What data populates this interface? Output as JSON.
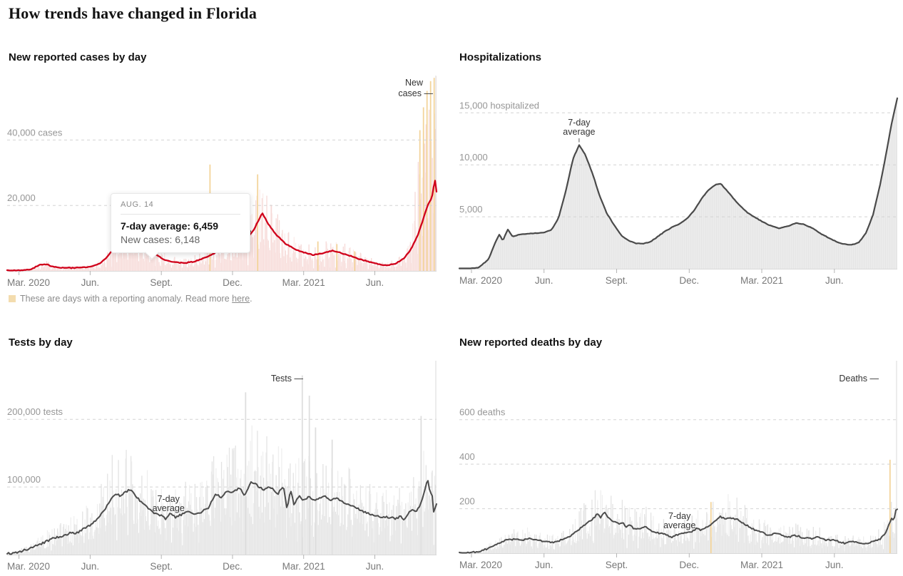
{
  "page_title": "How trends have changed in Florida",
  "tooltip": {
    "date": "AUG. 14",
    "line1": "7-day average: 6,459",
    "line2": "New cases: 6,148"
  },
  "footnote": {
    "text": "These are days with a reporting anomaly. Read more ",
    "link_text": "here",
    "suffix": "."
  },
  "colors": {
    "cases_line": "#d0021b",
    "cases_bar": "#f6d9d7",
    "anomaly": "#f3d49b",
    "gray_line": "#4d4d4d",
    "gray_bar": "#e3e3e3",
    "hosp_area": "#e6e6e6",
    "gridline": "#d4d4d4"
  },
  "chart_data": [
    {
      "id": "cases",
      "title": "New reported cases by day",
      "type": "bar+line",
      "x_domain": [
        -0.5,
        17.6
      ],
      "x_ticks": [
        {
          "m": 0,
          "label": "Mar. 2020"
        },
        {
          "m": 3,
          "label": "Jun."
        },
        {
          "m": 6,
          "label": "Sept."
        },
        {
          "m": 9,
          "label": "Dec."
        },
        {
          "m": 12,
          "label": "Mar. 2021"
        },
        {
          "m": 15,
          "label": "Jun."
        }
      ],
      "y_gridlines": [
        {
          "value": 40000,
          "label": "40,000 cases"
        },
        {
          "value": 20000,
          "label": "20,000"
        }
      ],
      "y_max": 61000,
      "series_label": "New cases",
      "annotation": {
        "text": "7-day average",
        "m": 9.12
      },
      "line": [
        [
          -0.5,
          100
        ],
        [
          0,
          200
        ],
        [
          0.5,
          500
        ],
        [
          0.9,
          1900
        ],
        [
          1.1,
          2100
        ],
        [
          1.4,
          1400
        ],
        [
          1.8,
          1000
        ],
        [
          2.2,
          900
        ],
        [
          2.6,
          1000
        ],
        [
          3.0,
          1200
        ],
        [
          3.4,
          2200
        ],
        [
          3.7,
          4200
        ],
        [
          4.0,
          6800
        ],
        [
          4.3,
          10000
        ],
        [
          4.6,
          11900
        ],
        [
          4.9,
          10700
        ],
        [
          5.1,
          9000
        ],
        [
          5.45,
          6459
        ],
        [
          5.8,
          4900
        ],
        [
          6.1,
          3500
        ],
        [
          6.5,
          2700
        ],
        [
          7.0,
          2400
        ],
        [
          7.4,
          2900
        ],
        [
          7.8,
          3900
        ],
        [
          8.2,
          5300
        ],
        [
          8.5,
          6500
        ],
        [
          8.75,
          7700
        ],
        [
          8.95,
          7200
        ],
        [
          9.2,
          9300
        ],
        [
          9.4,
          10200
        ],
        [
          9.6,
          9700
        ],
        [
          9.9,
          12500
        ],
        [
          10.1,
          15500
        ],
        [
          10.25,
          17800
        ],
        [
          10.5,
          14500
        ],
        [
          10.8,
          11400
        ],
        [
          11.2,
          8500
        ],
        [
          11.6,
          6700
        ],
        [
          12.0,
          5600
        ],
        [
          12.4,
          4900
        ],
        [
          12.8,
          5300
        ],
        [
          13.2,
          6200
        ],
        [
          13.6,
          5400
        ],
        [
          14.0,
          4500
        ],
        [
          14.4,
          3500
        ],
        [
          14.8,
          2700
        ],
        [
          15.2,
          2000
        ],
        [
          15.5,
          1700
        ],
        [
          15.9,
          2300
        ],
        [
          16.2,
          3700
        ],
        [
          16.5,
          6300
        ],
        [
          16.8,
          10700
        ],
        [
          17.0,
          15000
        ],
        [
          17.2,
          19500
        ],
        [
          17.35,
          21700
        ],
        [
          17.45,
          23500
        ],
        [
          17.52,
          28500
        ],
        [
          17.6,
          24300
        ]
      ],
      "anomalies": [
        [
          8.05,
          32500
        ],
        [
          10.06,
          29500
        ],
        [
          12.6,
          9000
        ],
        [
          13.4,
          8200
        ],
        [
          14.15,
          6000
        ],
        [
          16.9,
          43000
        ],
        [
          17.05,
          50000
        ],
        [
          17.2,
          55000
        ],
        [
          17.35,
          58000
        ],
        [
          17.5,
          59000
        ]
      ]
    },
    {
      "id": "hospitalizations",
      "title": "Hospitalizations",
      "type": "area+line",
      "x_domain": [
        -0.5,
        17.6
      ],
      "x_ticks": [
        {
          "m": 0,
          "label": "Mar. 2020"
        },
        {
          "m": 3,
          "label": "Jun."
        },
        {
          "m": 6,
          "label": "Sept."
        },
        {
          "m": 9,
          "label": "Dec."
        },
        {
          "m": 12,
          "label": "Mar. 2021"
        },
        {
          "m": 15,
          "label": "Jun."
        }
      ],
      "y_gridlines": [
        {
          "value": 15000,
          "label": "15,000 hospitalized"
        },
        {
          "value": 10000,
          "label": "10,000"
        },
        {
          "value": 5000,
          "label": "5,000"
        }
      ],
      "y_max": 19000,
      "annotation": {
        "text": "7-day average",
        "m": 4.45
      },
      "line": [
        [
          -0.2,
          0
        ],
        [
          0.3,
          100
        ],
        [
          0.7,
          900
        ],
        [
          1.0,
          2600
        ],
        [
          1.15,
          3300
        ],
        [
          1.3,
          2700
        ],
        [
          1.5,
          3800
        ],
        [
          1.7,
          3100
        ],
        [
          2.0,
          3300
        ],
        [
          2.5,
          3400
        ],
        [
          3.0,
          3500
        ],
        [
          3.3,
          3700
        ],
        [
          3.6,
          4900
        ],
        [
          3.9,
          7500
        ],
        [
          4.2,
          10600
        ],
        [
          4.45,
          11900
        ],
        [
          4.7,
          11000
        ],
        [
          5.0,
          9200
        ],
        [
          5.3,
          7000
        ],
        [
          5.6,
          5300
        ],
        [
          5.9,
          4200
        ],
        [
          6.2,
          3200
        ],
        [
          6.5,
          2700
        ],
        [
          6.8,
          2450
        ],
        [
          7.1,
          2400
        ],
        [
          7.4,
          2600
        ],
        [
          7.7,
          3100
        ],
        [
          8.0,
          3600
        ],
        [
          8.3,
          4000
        ],
        [
          8.6,
          4300
        ],
        [
          8.9,
          4800
        ],
        [
          9.2,
          5600
        ],
        [
          9.5,
          6700
        ],
        [
          9.8,
          7600
        ],
        [
          10.1,
          8100
        ],
        [
          10.3,
          8200
        ],
        [
          10.6,
          7400
        ],
        [
          11.0,
          6300
        ],
        [
          11.4,
          5400
        ],
        [
          11.9,
          4700
        ],
        [
          12.3,
          4200
        ],
        [
          12.7,
          3900
        ],
        [
          13.1,
          4100
        ],
        [
          13.4,
          4400
        ],
        [
          13.7,
          4300
        ],
        [
          14.1,
          3900
        ],
        [
          14.5,
          3300
        ],
        [
          14.9,
          2800
        ],
        [
          15.3,
          2400
        ],
        [
          15.7,
          2300
        ],
        [
          16.0,
          2500
        ],
        [
          16.3,
          3400
        ],
        [
          16.6,
          5200
        ],
        [
          16.9,
          8200
        ],
        [
          17.15,
          11200
        ],
        [
          17.35,
          13800
        ],
        [
          17.6,
          16400
        ]
      ],
      "anomalies": []
    },
    {
      "id": "tests",
      "title": "Tests by day",
      "type": "bar+line",
      "x_domain": [
        -0.5,
        17.6
      ],
      "x_ticks": [
        {
          "m": 0,
          "label": "Mar. 2020"
        },
        {
          "m": 3,
          "label": "Jun."
        },
        {
          "m": 6,
          "label": "Sept."
        },
        {
          "m": 9,
          "label": "Dec."
        },
        {
          "m": 12,
          "label": "Mar. 2021"
        },
        {
          "m": 15,
          "label": "Jun."
        }
      ],
      "y_gridlines": [
        {
          "value": 200000,
          "label": "200,000 tests"
        },
        {
          "value": 100000,
          "label": "100,000"
        }
      ],
      "y_max": 293000,
      "series_label": "Tests",
      "annotation": {
        "text": "7-day average",
        "m": 6.3
      },
      "line": [
        [
          -0.4,
          1500
        ],
        [
          0,
          4000
        ],
        [
          0.5,
          10000
        ],
        [
          1.0,
          17000
        ],
        [
          1.3,
          22000
        ],
        [
          1.6,
          26000
        ],
        [
          1.9,
          28000
        ],
        [
          2.2,
          33000
        ],
        [
          2.4,
          31000
        ],
        [
          2.7,
          38000
        ],
        [
          3.0,
          43000
        ],
        [
          3.3,
          52000
        ],
        [
          3.6,
          66000
        ],
        [
          3.9,
          84000
        ],
        [
          4.1,
          91000
        ],
        [
          4.25,
          86000
        ],
        [
          4.5,
          93000
        ],
        [
          4.7,
          96000
        ],
        [
          4.9,
          88000
        ],
        [
          5.1,
          80000
        ],
        [
          5.4,
          70000
        ],
        [
          5.7,
          62000
        ],
        [
          6.0,
          58000
        ],
        [
          6.2,
          52000
        ],
        [
          6.4,
          62000
        ],
        [
          6.6,
          55000
        ],
        [
          6.9,
          60000
        ],
        [
          7.2,
          64000
        ],
        [
          7.4,
          58000
        ],
        [
          7.7,
          63000
        ],
        [
          8.0,
          70000
        ],
        [
          8.3,
          90000
        ],
        [
          8.5,
          84000
        ],
        [
          8.8,
          95000
        ],
        [
          9.0,
          91000
        ],
        [
          9.3,
          99000
        ],
        [
          9.5,
          88000
        ],
        [
          9.8,
          108000
        ],
        [
          10.0,
          103000
        ],
        [
          10.3,
          96000
        ],
        [
          10.6,
          100000
        ],
        [
          10.9,
          89000
        ],
        [
          11.15,
          102000
        ],
        [
          11.3,
          67000
        ],
        [
          11.45,
          96000
        ],
        [
          11.6,
          72000
        ],
        [
          11.8,
          88000
        ],
        [
          12.0,
          80000
        ],
        [
          12.2,
          86000
        ],
        [
          12.45,
          79000
        ],
        [
          12.7,
          83000
        ],
        [
          12.9,
          87000
        ],
        [
          13.1,
          80000
        ],
        [
          13.35,
          84000
        ],
        [
          13.6,
          78000
        ],
        [
          14.0,
          72000
        ],
        [
          14.3,
          68000
        ],
        [
          14.6,
          62000
        ],
        [
          15.0,
          58000
        ],
        [
          15.3,
          56000
        ],
        [
          15.6,
          55000
        ],
        [
          15.9,
          53000
        ],
        [
          16.1,
          57000
        ],
        [
          16.25,
          50000
        ],
        [
          16.4,
          61000
        ],
        [
          16.55,
          67000
        ],
        [
          16.7,
          63000
        ],
        [
          16.9,
          72000
        ],
        [
          17.05,
          88000
        ],
        [
          17.15,
          103000
        ],
        [
          17.25,
          110000
        ],
        [
          17.33,
          87000
        ],
        [
          17.4,
          94000
        ],
        [
          17.48,
          62000
        ],
        [
          17.6,
          76000
        ]
      ],
      "anomalies": [
        [
          9.55,
          240000
        ],
        [
          11.94,
          265000
        ],
        [
          12.24,
          235000
        ],
        [
          12.5,
          188000
        ],
        [
          13.2,
          170000
        ],
        [
          16.95,
          205000
        ]
      ]
    },
    {
      "id": "deaths",
      "title": "New reported deaths by day",
      "type": "bar+line",
      "x_domain": [
        -0.5,
        17.6
      ],
      "x_ticks": [
        {
          "m": 0,
          "label": "Mar. 2020"
        },
        {
          "m": 3,
          "label": "Jun."
        },
        {
          "m": 6,
          "label": "Sept."
        },
        {
          "m": 9,
          "label": "Dec."
        },
        {
          "m": 12,
          "label": "Mar. 2021"
        },
        {
          "m": 15,
          "label": "Jun."
        }
      ],
      "y_gridlines": [
        {
          "value": 600,
          "label": "600 deaths"
        },
        {
          "value": 400,
          "label": "400"
        },
        {
          "value": 200,
          "label": "200"
        }
      ],
      "y_max": 884,
      "series_label": "Deaths",
      "annotation": {
        "text": "7-day average",
        "m": 8.6
      },
      "line": [
        [
          -0.4,
          1
        ],
        [
          0.2,
          5
        ],
        [
          0.6,
          18
        ],
        [
          1.0,
          40
        ],
        [
          1.4,
          58
        ],
        [
          1.8,
          62
        ],
        [
          2.1,
          60
        ],
        [
          2.4,
          66
        ],
        [
          2.7,
          58
        ],
        [
          3.0,
          55
        ],
        [
          3.3,
          48
        ],
        [
          3.6,
          55
        ],
        [
          3.9,
          68
        ],
        [
          4.2,
          85
        ],
        [
          4.5,
          112
        ],
        [
          4.8,
          140
        ],
        [
          5.0,
          152
        ],
        [
          5.2,
          176
        ],
        [
          5.35,
          160
        ],
        [
          5.5,
          183
        ],
        [
          5.7,
          155
        ],
        [
          5.9,
          142
        ],
        [
          6.1,
          130
        ],
        [
          6.25,
          141
        ],
        [
          6.4,
          116
        ],
        [
          6.55,
          126
        ],
        [
          6.7,
          112
        ],
        [
          7.0,
          110
        ],
        [
          7.2,
          120
        ],
        [
          7.5,
          96
        ],
        [
          7.8,
          88
        ],
        [
          8.0,
          85
        ],
        [
          8.3,
          72
        ],
        [
          8.6,
          88
        ],
        [
          8.9,
          92
        ],
        [
          9.1,
          97
        ],
        [
          9.3,
          110
        ],
        [
          9.5,
          104
        ],
        [
          9.8,
          120
        ],
        [
          10.0,
          140
        ],
        [
          10.3,
          164
        ],
        [
          10.5,
          152
        ],
        [
          10.7,
          160
        ],
        [
          11.0,
          150
        ],
        [
          11.3,
          130
        ],
        [
          11.6,
          110
        ],
        [
          12.0,
          95
        ],
        [
          12.3,
          79
        ],
        [
          12.6,
          90
        ],
        [
          12.9,
          76
        ],
        [
          13.1,
          72
        ],
        [
          13.4,
          80
        ],
        [
          13.7,
          70
        ],
        [
          14.0,
          65
        ],
        [
          14.3,
          73
        ],
        [
          14.6,
          60
        ],
        [
          15.0,
          58
        ],
        [
          15.4,
          45
        ],
        [
          15.7,
          51
        ],
        [
          16.0,
          48
        ],
        [
          16.3,
          42
        ],
        [
          16.6,
          55
        ],
        [
          16.9,
          64
        ],
        [
          17.1,
          88
        ],
        [
          17.25,
          128
        ],
        [
          17.38,
          158
        ],
        [
          17.45,
          140
        ],
        [
          17.55,
          200
        ]
      ],
      "anomalies": [
        [
          9.9,
          230
        ],
        [
          17.3,
          420
        ]
      ]
    }
  ]
}
